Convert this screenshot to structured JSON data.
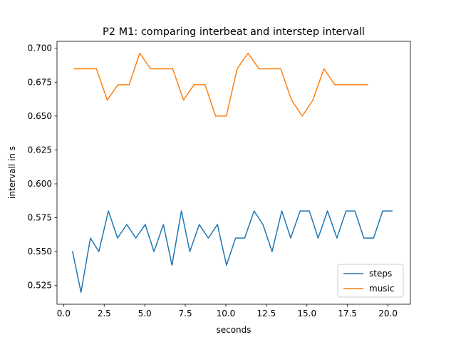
{
  "chart_data": {
    "type": "line",
    "title": "P2 M1: comparing interbeat and interstep intervall",
    "xlabel": "seconds",
    "ylabel": "intervall in s",
    "xlim": [
      -0.41,
      21.38
    ],
    "ylim": [
      0.5112,
      0.7051
    ],
    "xticks": [
      0.0,
      2.5,
      5.0,
      7.5,
      10.0,
      12.5,
      15.0,
      17.5,
      20.0
    ],
    "xtick_labels": [
      "0.0",
      "2.5",
      "5.0",
      "7.5",
      "10.0",
      "12.5",
      "15.0",
      "17.5",
      "20.0"
    ],
    "yticks": [
      0.525,
      0.55,
      0.575,
      0.6,
      0.625,
      0.65,
      0.675,
      0.7
    ],
    "ytick_labels": [
      "0.525",
      "0.550",
      "0.575",
      "0.600",
      "0.625",
      "0.650",
      "0.675",
      "0.700"
    ],
    "grid": false,
    "legend_position": "lower right",
    "series": [
      {
        "name": "steps",
        "color": "#1f77b4",
        "x": [
          0.55,
          1.07,
          1.65,
          2.17,
          2.76,
          3.32,
          3.89,
          4.45,
          5.03,
          5.57,
          6.15,
          6.68,
          7.26,
          7.78,
          8.36,
          8.92,
          9.48,
          10.04,
          10.6,
          11.16,
          11.74,
          12.29,
          12.85,
          13.45,
          14.0,
          14.58,
          15.15,
          15.69,
          16.27,
          16.85,
          17.41,
          17.96,
          18.51,
          19.11,
          19.67,
          20.24
        ],
        "y": [
          0.55,
          0.52,
          0.56,
          0.55,
          0.58,
          0.56,
          0.57,
          0.56,
          0.57,
          0.55,
          0.57,
          0.54,
          0.58,
          0.55,
          0.57,
          0.56,
          0.57,
          0.54,
          0.56,
          0.56,
          0.58,
          0.57,
          0.55,
          0.58,
          0.56,
          0.58,
          0.58,
          0.56,
          0.58,
          0.56,
          0.58,
          0.58,
          0.56,
          0.56,
          0.58,
          0.58
        ]
      },
      {
        "name": "music",
        "color": "#ff7f0e",
        "x": [
          0.65,
          1.33,
          2.02,
          2.69,
          3.35,
          4.04,
          4.69,
          5.36,
          6.05,
          6.72,
          7.39,
          8.04,
          8.72,
          9.37,
          10.03,
          10.7,
          11.37,
          12.04,
          12.71,
          13.38,
          14.05,
          14.71,
          15.37,
          16.05,
          16.72,
          17.39,
          18.06,
          18.72
        ],
        "y": [
          0.6849,
          0.6849,
          0.6849,
          0.6618,
          0.6731,
          0.6731,
          0.6963,
          0.6849,
          0.6849,
          0.6849,
          0.6618,
          0.6731,
          0.6731,
          0.65,
          0.65,
          0.6849,
          0.6963,
          0.6849,
          0.6849,
          0.6849,
          0.6618,
          0.65,
          0.6618,
          0.6849,
          0.6731,
          0.6731,
          0.6731,
          0.6731
        ]
      }
    ]
  }
}
